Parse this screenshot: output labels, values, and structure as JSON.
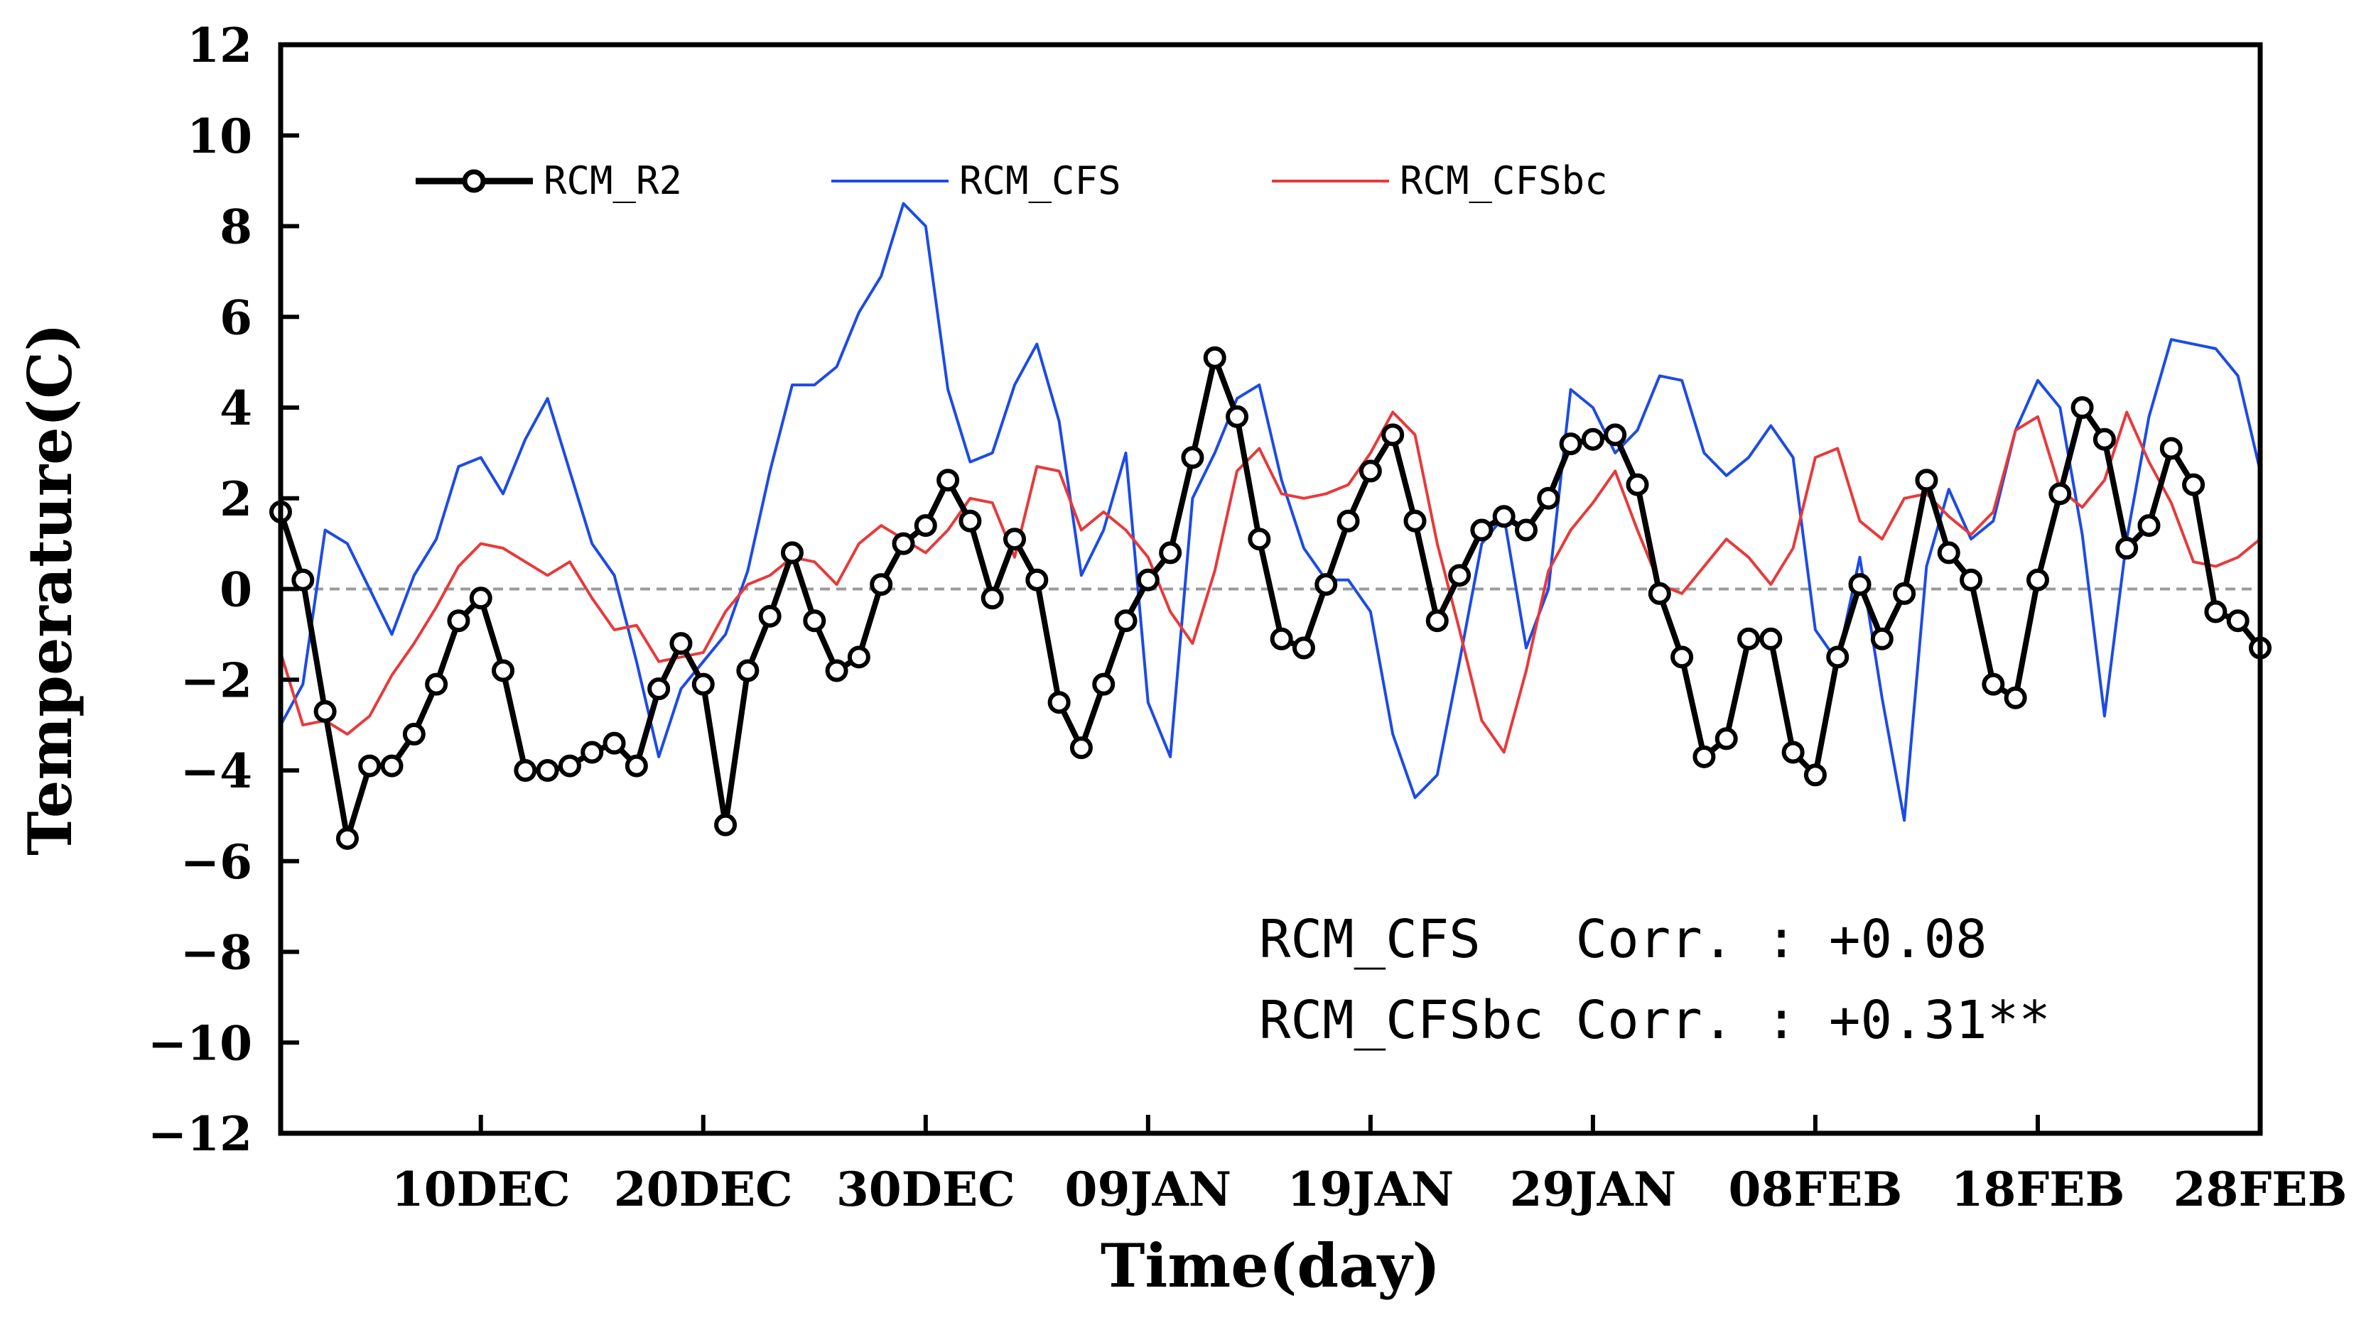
{
  "chart_data": {
    "type": "line",
    "title": "",
    "xlabel": "Time(day)",
    "ylabel": "Temperature(C)",
    "ylim": [
      -12,
      12
    ],
    "xlim": [
      1,
      90
    ],
    "yticks": [
      -12,
      -10,
      -8,
      -6,
      -4,
      -2,
      0,
      2,
      4,
      6,
      8,
      10,
      12
    ],
    "ytick_labels": [
      "−12",
      "−10",
      "−8",
      "−6",
      "−4",
      "−2",
      "0",
      "2",
      "4",
      "6",
      "8",
      "10",
      "12"
    ],
    "xticks": [
      {
        "day": 10,
        "label": "10DEC"
      },
      {
        "day": 20,
        "label": "20DEC"
      },
      {
        "day": 30,
        "label": "30DEC"
      },
      {
        "day": 40,
        "label": "09JAN"
      },
      {
        "day": 50,
        "label": "19JAN"
      },
      {
        "day": 60,
        "label": "29JAN"
      },
      {
        "day": 70,
        "label": "08FEB"
      },
      {
        "day": 80,
        "label": "18FEB"
      },
      {
        "day": 90,
        "label": "28FEB"
      }
    ],
    "zero_line": true,
    "legend": {
      "placement": "top-left",
      "entries": [
        "RCM_R2",
        "RCM_CFS",
        "RCM_CFSbc"
      ]
    },
    "annotations": [
      "RCM_CFS   Corr. : +0.08",
      "RCM_CFSbc Corr. : +0.31**"
    ],
    "series": [
      {
        "name": "RCM_R2",
        "color": "#000000",
        "marker": "circle",
        "values": [
          1.7,
          0.2,
          -2.7,
          -5.5,
          -3.9,
          -3.9,
          -3.2,
          -2.1,
          -0.7,
          -0.2,
          -1.8,
          -4.0,
          -4.0,
          -3.9,
          -3.6,
          -3.4,
          -3.9,
          -2.2,
          -1.2,
          -2.1,
          -5.2,
          -1.8,
          -0.6,
          0.8,
          -0.7,
          -1.8,
          -1.5,
          0.1,
          1.0,
          1.4,
          2.4,
          1.5,
          -0.2,
          1.1,
          0.2,
          -2.5,
          -3.5,
          -2.1,
          -0.7,
          0.2,
          0.8,
          2.9,
          5.1,
          3.8,
          1.1,
          -1.1,
          -1.3,
          0.1,
          1.5,
          2.6,
          3.4,
          1.5,
          -0.7,
          0.3,
          1.3,
          1.6,
          1.3,
          2.0,
          3.2,
          3.3,
          3.4,
          2.3,
          -0.1,
          -1.5,
          -3.7,
          -3.3,
          -1.1,
          -1.1,
          -3.6,
          -4.1,
          -1.5,
          0.1,
          -1.1,
          -0.1,
          2.4,
          0.8,
          0.2,
          -2.1,
          -2.4,
          0.2,
          2.1,
          4.0,
          3.3,
          0.9,
          1.4,
          3.1,
          2.3,
          -0.5,
          -0.7,
          -1.3
        ]
      },
      {
        "name": "RCM_CFS",
        "color": "#1c4be6",
        "marker": "none",
        "values": [
          -3.0,
          -2.1,
          1.3,
          1.0,
          0.0,
          -1.0,
          0.3,
          1.1,
          2.7,
          2.9,
          2.1,
          3.3,
          4.2,
          2.6,
          1.0,
          0.3,
          -1.6,
          -3.7,
          -2.2,
          -1.6,
          -1.0,
          0.4,
          2.6,
          4.5,
          4.5,
          4.9,
          6.1,
          6.9,
          8.5,
          8.0,
          4.4,
          2.8,
          3.0,
          4.5,
          5.4,
          3.7,
          0.3,
          1.3,
          3.0,
          -2.5,
          -3.7,
          2.0,
          3.0,
          4.2,
          4.5,
          2.4,
          0.9,
          0.2,
          0.2,
          -0.5,
          -3.2,
          -4.6,
          -4.1,
          -1.6,
          1.0,
          1.6,
          -1.3,
          0.0,
          4.4,
          4.0,
          3.0,
          3.5,
          4.7,
          4.6,
          3.0,
          2.5,
          2.9,
          3.6,
          2.9,
          -0.9,
          -1.6,
          0.7,
          -2.4,
          -5.1,
          0.5,
          2.2,
          1.1,
          1.5,
          3.5,
          4.6,
          4.0,
          1.2,
          -2.8,
          1.1,
          3.8,
          5.5,
          5.4,
          5.3,
          4.7,
          2.6
        ]
      },
      {
        "name": "RCM_CFSbc",
        "color": "#e8393a",
        "marker": "none",
        "values": [
          -1.4,
          -3.0,
          -2.9,
          -3.2,
          -2.8,
          -1.9,
          -1.2,
          -0.4,
          0.5,
          1.0,
          0.9,
          0.6,
          0.3,
          0.6,
          -0.2,
          -0.9,
          -0.8,
          -1.6,
          -1.5,
          -1.4,
          -0.5,
          0.1,
          0.3,
          0.7,
          0.6,
          0.1,
          1.0,
          1.4,
          1.1,
          0.8,
          1.3,
          2.0,
          1.9,
          0.7,
          2.7,
          2.6,
          1.3,
          1.7,
          1.3,
          0.7,
          -0.5,
          -1.2,
          0.4,
          2.6,
          3.1,
          2.1,
          2.0,
          2.1,
          2.3,
          3.0,
          3.9,
          3.4,
          1.0,
          -0.9,
          -2.9,
          -3.6,
          -1.8,
          0.4,
          1.3,
          1.9,
          2.6,
          1.3,
          0.1,
          -0.1,
          0.5,
          1.1,
          0.7,
          0.1,
          0.9,
          2.9,
          3.1,
          1.5,
          1.1,
          2.0,
          2.1,
          1.6,
          1.2,
          1.7,
          3.5,
          3.8,
          2.2,
          1.8,
          2.4,
          3.9,
          2.8,
          1.9,
          0.6,
          0.5,
          0.7,
          1.1
        ]
      }
    ]
  }
}
